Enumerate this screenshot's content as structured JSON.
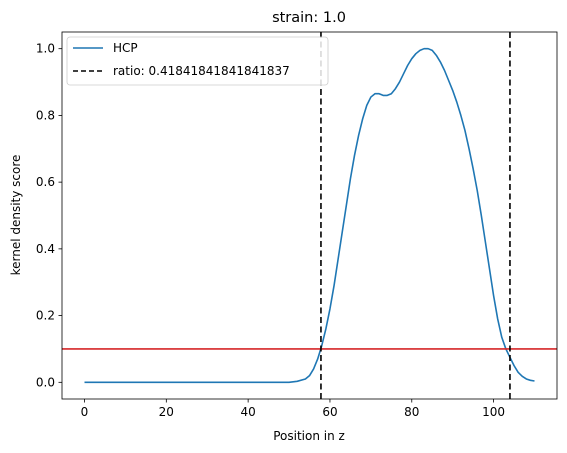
{
  "chart_data": {
    "type": "line",
    "title": "strain: 1.0",
    "xlabel": "Position in z",
    "ylabel": "kernel density score",
    "xlim": [
      -5.5,
      115.5
    ],
    "ylim": [
      -0.05,
      1.05
    ],
    "xticks": [
      0,
      20,
      40,
      60,
      80,
      100
    ],
    "yticks": [
      0.0,
      0.2,
      0.4,
      0.6,
      0.8,
      1.0
    ],
    "xtick_labels": [
      "0",
      "20",
      "40",
      "60",
      "80",
      "100"
    ],
    "ytick_labels": [
      "0.0",
      "0.2",
      "0.4",
      "0.6",
      "0.8",
      "1.0"
    ],
    "grid": false,
    "legend_position": "upper-left",
    "series": [
      {
        "name": "HCP",
        "color": "#1f77b4",
        "style": "solid",
        "x": [
          0,
          10,
          20,
          30,
          40,
          45,
          50,
          52,
          54,
          55,
          56,
          57,
          58,
          59,
          60,
          61,
          62,
          63,
          64,
          65,
          66,
          67,
          68,
          69,
          70,
          71,
          72,
          73,
          74,
          75,
          76,
          77,
          78,
          79,
          80,
          81,
          82,
          83,
          84,
          85,
          86,
          87,
          88,
          89,
          90,
          91,
          92,
          93,
          94,
          95,
          96,
          97,
          98,
          99,
          100,
          101,
          102,
          103,
          104,
          105,
          106,
          107,
          108,
          109,
          110
        ],
        "y": [
          0.0,
          0.0,
          0.0,
          0.0,
          0.0,
          0.0,
          0.0,
          0.003,
          0.01,
          0.02,
          0.04,
          0.07,
          0.11,
          0.16,
          0.22,
          0.29,
          0.37,
          0.45,
          0.53,
          0.61,
          0.68,
          0.74,
          0.79,
          0.83,
          0.855,
          0.865,
          0.865,
          0.86,
          0.86,
          0.865,
          0.88,
          0.9,
          0.925,
          0.95,
          0.97,
          0.985,
          0.995,
          1.0,
          1.0,
          0.995,
          0.98,
          0.96,
          0.935,
          0.905,
          0.875,
          0.84,
          0.8,
          0.755,
          0.7,
          0.64,
          0.575,
          0.5,
          0.42,
          0.34,
          0.26,
          0.19,
          0.135,
          0.1,
          0.075,
          0.05,
          0.03,
          0.018,
          0.01,
          0.006,
          0.004
        ]
      },
      {
        "name": "ratio: 0.41841841841841837",
        "color": "#000000",
        "style": "dashed",
        "vlines": [
          57.8,
          104.0
        ]
      }
    ],
    "hline": {
      "y": 0.1,
      "color": "#d62728"
    }
  }
}
